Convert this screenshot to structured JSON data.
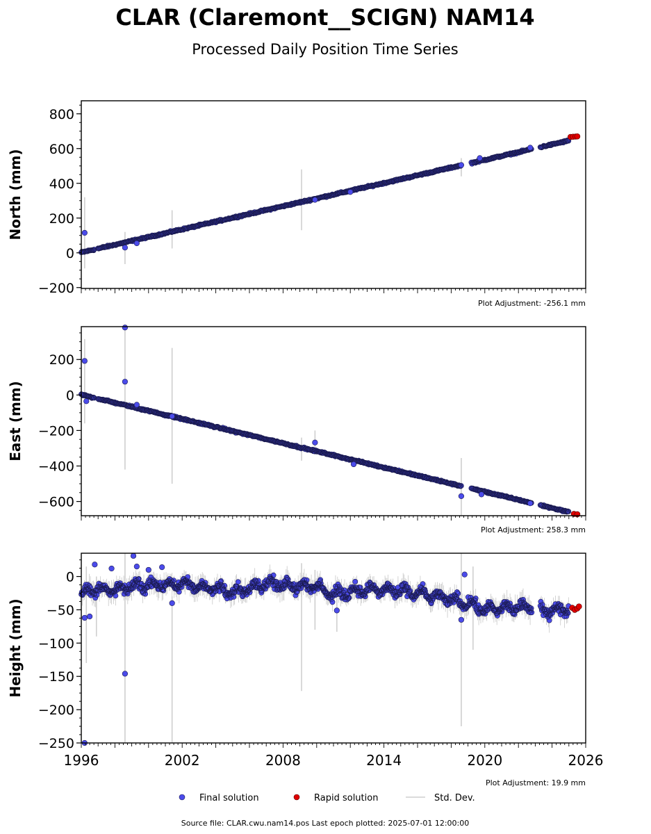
{
  "figure": {
    "title": "CLAR (Claremont__SCIGN) NAM14",
    "subtitle": "Processed Daily Position Time Series",
    "footer": "Source file: CLAR.cwu.nam14.pos  Last epoch plotted: 2025-07-01 12:00:00",
    "legend": {
      "placement": "bottom-center",
      "items": [
        {
          "label": "Final solution",
          "color": "#4b4bea",
          "marker": "dot"
        },
        {
          "label": "Rapid solution",
          "color": "#e00000",
          "marker": "dot"
        },
        {
          "label": "Std. Dev.",
          "color": "#cfcfcf",
          "marker": "line"
        }
      ]
    }
  },
  "chart_data": [
    {
      "type": "scatter",
      "ylabel": "North (mm)",
      "adjustment": "Plot Adjustment: -256.1 mm",
      "xlim": [
        1996,
        2026
      ],
      "ylim": [
        -205,
        875
      ],
      "yticks": [
        -200,
        0,
        200,
        400,
        600,
        800
      ],
      "ytick_labels": [
        "−200",
        "0",
        "200",
        "400",
        "600",
        "800"
      ],
      "grid": false,
      "series": [
        {
          "name": "Final solution",
          "color": "#4b4bea",
          "trend": {
            "segments": [
              [
                1996.0,
                1996.8
              ],
              [
                1997.0,
                2018.6
              ],
              [
                2019.2,
                2022.8
              ],
              [
                2023.3,
                2025.0
              ]
            ],
            "slope_per_year": 22.2,
            "value_at_1996": 2,
            "noise": 4
          },
          "points": [
            [
              1996.2,
              115
            ],
            [
              1998.6,
              30
            ],
            [
              1999.3,
              55
            ],
            [
              2009.9,
              305
            ],
            [
              2012.0,
              350
            ],
            [
              2018.6,
              505
            ],
            [
              2019.7,
              545
            ],
            [
              2022.7,
              605
            ]
          ],
          "errorbars": [
            [
              1996.2,
              -90,
              320
            ],
            [
              1998.6,
              -65,
              120
            ],
            [
              2001.4,
              25,
              245
            ],
            [
              2009.1,
              130,
              480
            ],
            [
              2018.6,
              440,
              545
            ]
          ]
        },
        {
          "name": "Rapid solution",
          "color": "#e00000",
          "points": [
            [
              2025.1,
              667
            ],
            [
              2025.25,
              668
            ],
            [
              2025.4,
              669
            ],
            [
              2025.5,
              670
            ]
          ]
        }
      ]
    },
    {
      "type": "scatter",
      "ylabel": "East (mm)",
      "adjustment": "Plot Adjustment: 258.3 mm",
      "xlim": [
        1996,
        2026
      ],
      "ylim": [
        -680,
        385
      ],
      "yticks": [
        -600,
        -400,
        -200,
        0,
        200
      ],
      "ytick_labels": [
        "−600",
        "−400",
        "−200",
        "0",
        "200"
      ],
      "grid": false,
      "series": [
        {
          "name": "Final solution",
          "color": "#4b4bea",
          "trend": {
            "segments": [
              [
                1996.0,
                1996.8
              ],
              [
                1997.0,
                2018.6
              ],
              [
                2019.2,
                2022.8
              ],
              [
                2023.3,
                2025.0
              ]
            ],
            "slope_per_year": -22.8,
            "value_at_1996": 2,
            "noise": 4
          },
          "points": [
            [
              1996.2,
              192
            ],
            [
              1996.3,
              -35
            ],
            [
              1998.6,
              380
            ],
            [
              1998.6,
              75
            ],
            [
              1999.3,
              -55
            ],
            [
              2001.4,
              -120
            ],
            [
              2009.9,
              -268
            ],
            [
              2012.2,
              -390
            ],
            [
              2018.6,
              -570
            ],
            [
              2019.8,
              -560
            ],
            [
              2022.7,
              -610
            ]
          ],
          "errorbars": [
            [
              1996.2,
              -160,
              315
            ],
            [
              1998.6,
              -420,
              385
            ],
            [
              2001.4,
              -500,
              265
            ],
            [
              2009.1,
              -370,
              -240
            ],
            [
              2009.9,
              -300,
              -200
            ],
            [
              2018.6,
              -710,
              -355
            ]
          ]
        },
        {
          "name": "Rapid solution",
          "color": "#e00000",
          "points": [
            [
              2025.3,
              -670
            ],
            [
              2025.5,
              -672
            ]
          ]
        }
      ]
    },
    {
      "type": "scatter",
      "ylabel": "Height (mm)",
      "adjustment": "Plot Adjustment: 19.9 mm",
      "xlabel": "",
      "xlim": [
        1996,
        2026
      ],
      "xticks": [
        1996,
        2002,
        2008,
        2014,
        2020,
        2026
      ],
      "ylim": [
        -250,
        35
      ],
      "yticks": [
        -250,
        -200,
        -150,
        -100,
        -50,
        0
      ],
      "ytick_labels": [
        "−250",
        "−200",
        "−150",
        "−100",
        "−50",
        "0"
      ],
      "grid": false,
      "series": [
        {
          "name": "Final solution",
          "color": "#4b4bea",
          "profile": [
            [
              1996.0,
              -25
            ],
            [
              1997.0,
              -18
            ],
            [
              1998.0,
              -22
            ],
            [
              1999.0,
              -15
            ],
            [
              2000.0,
              -12
            ],
            [
              2002.0,
              -12
            ],
            [
              2003.0,
              -15
            ],
            [
              2004.0,
              -18
            ],
            [
              2005.0,
              -25
            ],
            [
              2006.0,
              -15
            ],
            [
              2007.0,
              -10
            ],
            [
              2008.0,
              -12
            ],
            [
              2010.0,
              -15
            ],
            [
              2011.0,
              -28
            ],
            [
              2012.0,
              -22
            ],
            [
              2013.0,
              -20
            ],
            [
              2014.0,
              -20
            ],
            [
              2016.0,
              -25
            ],
            [
              2017.0,
              -30
            ],
            [
              2018.0,
              -35
            ],
            [
              2019.0,
              -40
            ],
            [
              2020.0,
              -50
            ],
            [
              2021.0,
              -48
            ],
            [
              2022.0,
              -46
            ],
            [
              2022.8,
              -46
            ]
          ],
          "profile_after_gap": [
            [
              2023.3,
              -52
            ],
            [
              2024.0,
              -50
            ],
            [
              2025.0,
              -48
            ]
          ],
          "amplitude": 12,
          "points": [
            [
              1996.2,
              -250
            ],
            [
              1996.2,
              -62
            ],
            [
              1996.5,
              -60
            ],
            [
              1996.8,
              18
            ],
            [
              1997.8,
              12
            ],
            [
              1998.6,
              -146
            ],
            [
              1999.1,
              31
            ],
            [
              1999.3,
              15
            ],
            [
              2000.0,
              10
            ],
            [
              2000.8,
              14
            ],
            [
              2001.4,
              -40
            ],
            [
              2011.2,
              -51
            ],
            [
              2018.6,
              -65
            ],
            [
              2018.8,
              3
            ]
          ],
          "errorbars": [
            [
              1996.3,
              -130,
              15
            ],
            [
              1996.9,
              -90,
              0
            ],
            [
              1998.6,
              -250,
              35
            ],
            [
              2001.4,
              -250,
              -30
            ],
            [
              2009.1,
              -172,
              20
            ],
            [
              2009.9,
              -80,
              10
            ],
            [
              2011.2,
              -83,
              -25
            ],
            [
              2018.6,
              -225,
              35
            ],
            [
              2019.3,
              -110,
              15
            ]
          ]
        },
        {
          "name": "Rapid solution",
          "color": "#e00000",
          "points": [
            [
              2025.2,
              -47
            ],
            [
              2025.35,
              -50
            ],
            [
              2025.5,
              -48
            ],
            [
              2025.6,
              -45
            ]
          ]
        }
      ]
    }
  ]
}
